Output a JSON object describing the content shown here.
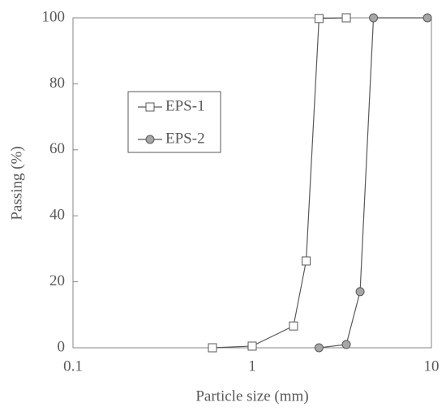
{
  "chart_data": {
    "type": "line",
    "x_label": "Particle size (mm)",
    "y_label": "Passing (%)",
    "xscale": "log",
    "xlim": [
      0.1,
      10
    ],
    "xticks": [
      0.1,
      1,
      10
    ],
    "ylim": [
      0,
      100
    ],
    "yticks": [
      0,
      20,
      40,
      60,
      80,
      100
    ],
    "legend": "upper left",
    "series": [
      {
        "name": "EPS-1",
        "marker": "square",
        "color": "#595959",
        "marker_fill": "#ffffff",
        "x": [
          0.6,
          1.0,
          1.7,
          2.0,
          2.36,
          3.35
        ],
        "values": [
          0,
          0.5,
          6.6,
          26.3,
          99.8,
          100
        ]
      },
      {
        "name": "EPS-2",
        "marker": "circle",
        "color": "#595959",
        "marker_fill": "#a6a6a6",
        "x": [
          2.36,
          3.35,
          4.0,
          4.75,
          9.5
        ],
        "values": [
          0,
          1,
          17,
          100,
          100
        ]
      }
    ]
  }
}
